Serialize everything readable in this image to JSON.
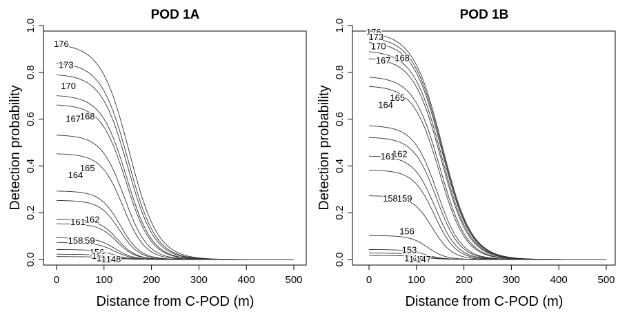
{
  "figure": {
    "background": "#ffffff",
    "ink": "#000000"
  },
  "chart_data": [
    {
      "type": "line",
      "title": "POD 1A",
      "xlabel": "Distance from C-POD (m)",
      "ylabel": "Detection probability",
      "xlim": [
        0,
        500
      ],
      "ylim": [
        0,
        1.0
      ],
      "xticks": [
        "0",
        "100",
        "200",
        "300",
        "400",
        "500"
      ],
      "yticks": [
        "0.0",
        "0.2",
        "0.4",
        "0.6",
        "0.8",
        "1.0"
      ],
      "grid": false,
      "legend": "none",
      "series": [
        {
          "name": "176",
          "p0": 0.92,
          "label_x": 10,
          "label_y": 0.92
        },
        {
          "name": "173",
          "p0": 0.84,
          "label_x": 20,
          "label_y": 0.83
        },
        {
          "name": "170",
          "p0": 0.79,
          "label_x": 25,
          "label_y": 0.74
        },
        {
          "name": "168",
          "p0": 0.7,
          "label_x": 65,
          "label_y": 0.61
        },
        {
          "name": "167",
          "p0": 0.66,
          "label_x": 35,
          "label_y": 0.6
        },
        {
          "name": "165",
          "p0": 0.53,
          "label_x": 65,
          "label_y": 0.39
        },
        {
          "name": "164",
          "p0": 0.45,
          "label_x": 40,
          "label_y": 0.36
        },
        {
          "name": "162",
          "p0": 0.29,
          "label_x": 75,
          "label_y": 0.17
        },
        {
          "name": "161",
          "p0": 0.25,
          "label_x": 45,
          "label_y": 0.16
        },
        {
          "name": "159",
          "p0": 0.17,
          "label_x": 65,
          "label_y": 0.08
        },
        {
          "name": "158",
          "p0": 0.15,
          "label_x": 40,
          "label_y": 0.08
        },
        {
          "name": "156",
          "p0": 0.09,
          "label_x": 85,
          "label_y": 0.03
        },
        {
          "name": "155",
          "p0": 0.07,
          "label_x": 90,
          "label_y": 0.015
        },
        {
          "name": "153",
          "p0": 0.04,
          "label_x": 100,
          "label_y": 0.005
        },
        {
          "name": "150",
          "p0": 0.02,
          "label_x": 110,
          "label_y": 0.0
        },
        {
          "name": "148",
          "p0": 0.01,
          "label_x": 120,
          "label_y": 0.0
        }
      ]
    },
    {
      "type": "line",
      "title": "POD 1B",
      "xlabel": "Distance from C-POD (m)",
      "ylabel": "Detection probability",
      "xlim": [
        0,
        500
      ],
      "ylim": [
        0,
        1.0
      ],
      "xticks": [
        "0",
        "100",
        "200",
        "300",
        "400",
        "500"
      ],
      "yticks": [
        "0.0",
        "0.2",
        "0.4",
        "0.6",
        "0.8",
        "1.0"
      ],
      "grid": false,
      "legend": "none",
      "series": [
        {
          "name": "176",
          "p0": 0.97,
          "label_x": 10,
          "label_y": 0.97
        },
        {
          "name": "173",
          "p0": 0.95,
          "label_x": 15,
          "label_y": 0.95
        },
        {
          "name": "170",
          "p0": 0.93,
          "label_x": 20,
          "label_y": 0.91
        },
        {
          "name": "168",
          "p0": 0.89,
          "label_x": 70,
          "label_y": 0.86
        },
        {
          "name": "167",
          "p0": 0.86,
          "label_x": 30,
          "label_y": 0.85
        },
        {
          "name": "165",
          "p0": 0.78,
          "label_x": 60,
          "label_y": 0.69
        },
        {
          "name": "164",
          "p0": 0.74,
          "label_x": 35,
          "label_y": 0.66
        },
        {
          "name": "162",
          "p0": 0.57,
          "label_x": 65,
          "label_y": 0.45
        },
        {
          "name": "161",
          "p0": 0.52,
          "label_x": 40,
          "label_y": 0.44
        },
        {
          "name": "159",
          "p0": 0.44,
          "label_x": 75,
          "label_y": 0.26
        },
        {
          "name": "158",
          "p0": 0.38,
          "label_x": 45,
          "label_y": 0.26
        },
        {
          "name": "156",
          "p0": 0.27,
          "label_x": 80,
          "label_y": 0.12
        },
        {
          "name": "153",
          "p0": 0.1,
          "label_x": 85,
          "label_y": 0.04
        },
        {
          "name": "150",
          "p0": 0.04,
          "label_x": 90,
          "label_y": 0.005
        },
        {
          "name": "148",
          "p0": 0.025,
          "label_x": 100,
          "label_y": 0.0
        },
        {
          "name": "147",
          "p0": 0.015,
          "label_x": 115,
          "label_y": 0.0
        }
      ]
    }
  ]
}
